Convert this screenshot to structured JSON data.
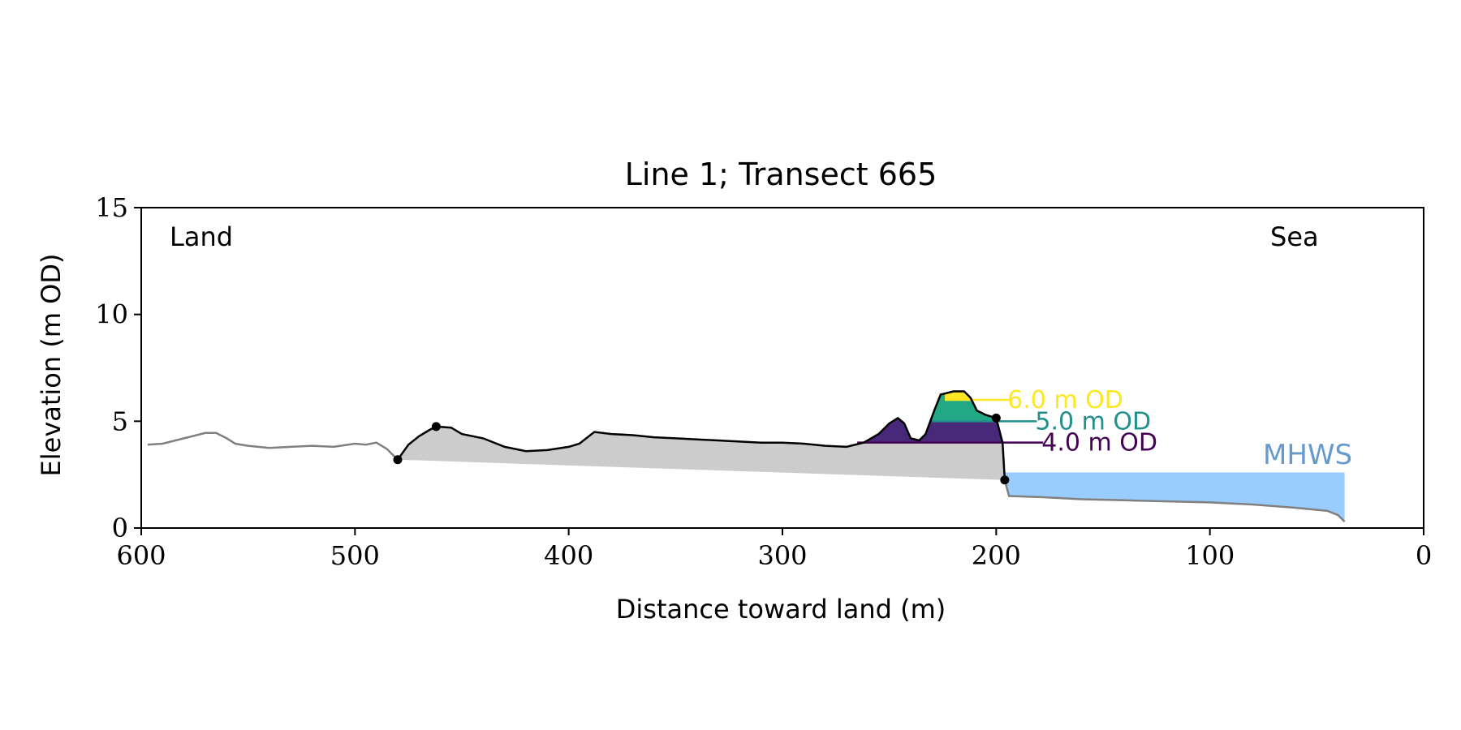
{
  "chart_data": {
    "type": "line",
    "title": "Line 1; Transect 665",
    "xlabel": "Distance toward land (m)",
    "ylabel": "Elevation (m OD)",
    "xlim": [
      600,
      0
    ],
    "ylim": [
      0,
      15
    ],
    "xticks": [
      600,
      500,
      400,
      300,
      200,
      100,
      0
    ],
    "yticks": [
      0,
      5,
      10,
      15
    ],
    "grid": false,
    "annotations": {
      "land": "Land",
      "sea": "Sea",
      "mhws": "MHWS"
    },
    "colors": {
      "profile_outer": "#808080",
      "profile_dune": "#000000",
      "dune_fill": "#cccccc",
      "sea_fill": "#99ccff",
      "mhws_text": "#6699cc",
      "level_4": "#440154",
      "level_5": "#21908d",
      "level_6": "#fde725",
      "fill_4": "#482878",
      "fill_5": "#22a884",
      "fill_6": "#fde725"
    },
    "mhws_level": 2.6,
    "sea_extent": [
      197,
      37
    ],
    "levels": [
      {
        "label": "4.0 m OD",
        "value": 4.0,
        "from": 265,
        "to": 178
      },
      {
        "label": "5.0 m OD",
        "value": 5.0,
        "from": 230,
        "to": 181
      },
      {
        "label": "6.0 m OD",
        "value": 6.0,
        "from": 224,
        "to": 194
      }
    ],
    "dune_points": [
      {
        "x": 480,
        "y": 3.2
      },
      {
        "x": 462,
        "y": 4.75
      },
      {
        "x": 200,
        "y": 5.15
      },
      {
        "x": 196,
        "y": 2.25
      }
    ],
    "profile_land": [
      [
        597,
        3.9
      ],
      [
        590,
        3.95
      ],
      [
        580,
        4.2
      ],
      [
        570,
        4.45
      ],
      [
        565,
        4.45
      ],
      [
        560,
        4.2
      ],
      [
        556,
        3.95
      ],
      [
        550,
        3.85
      ],
      [
        540,
        3.75
      ],
      [
        530,
        3.8
      ],
      [
        520,
        3.85
      ],
      [
        510,
        3.8
      ],
      [
        500,
        3.95
      ],
      [
        495,
        3.9
      ],
      [
        490,
        4.0
      ],
      [
        485,
        3.7
      ],
      [
        480,
        3.2
      ]
    ],
    "profile_dune": [
      [
        480,
        3.2
      ],
      [
        475,
        3.9
      ],
      [
        470,
        4.3
      ],
      [
        465,
        4.6
      ],
      [
        462,
        4.75
      ],
      [
        455,
        4.7
      ],
      [
        450,
        4.4
      ],
      [
        440,
        4.2
      ],
      [
        430,
        3.8
      ],
      [
        420,
        3.6
      ],
      [
        410,
        3.65
      ],
      [
        400,
        3.8
      ],
      [
        395,
        3.95
      ],
      [
        388,
        4.5
      ],
      [
        380,
        4.4
      ],
      [
        370,
        4.35
      ],
      [
        360,
        4.25
      ],
      [
        350,
        4.2
      ],
      [
        340,
        4.15
      ],
      [
        330,
        4.1
      ],
      [
        320,
        4.05
      ],
      [
        310,
        4.0
      ],
      [
        300,
        4.0
      ],
      [
        290,
        3.95
      ],
      [
        280,
        3.85
      ],
      [
        270,
        3.8
      ],
      [
        262,
        4.0
      ],
      [
        255,
        4.4
      ],
      [
        250,
        4.9
      ],
      [
        246,
        5.15
      ],
      [
        243,
        4.9
      ],
      [
        240,
        4.2
      ],
      [
        236,
        4.1
      ],
      [
        233,
        4.4
      ],
      [
        229,
        5.5
      ],
      [
        226,
        6.25
      ],
      [
        220,
        6.4
      ],
      [
        215,
        6.4
      ],
      [
        212,
        6.1
      ],
      [
        209,
        5.5
      ],
      [
        205,
        5.3
      ],
      [
        200,
        5.15
      ],
      [
        197,
        4.0
      ],
      [
        196,
        2.25
      ]
    ],
    "profile_beach": [
      [
        196,
        2.25
      ],
      [
        194,
        1.5
      ],
      [
        180,
        1.45
      ],
      [
        160,
        1.35
      ],
      [
        140,
        1.3
      ],
      [
        120,
        1.25
      ],
      [
        100,
        1.2
      ],
      [
        80,
        1.1
      ],
      [
        60,
        0.95
      ],
      [
        45,
        0.8
      ],
      [
        40,
        0.6
      ],
      [
        37,
        0.3
      ]
    ]
  }
}
